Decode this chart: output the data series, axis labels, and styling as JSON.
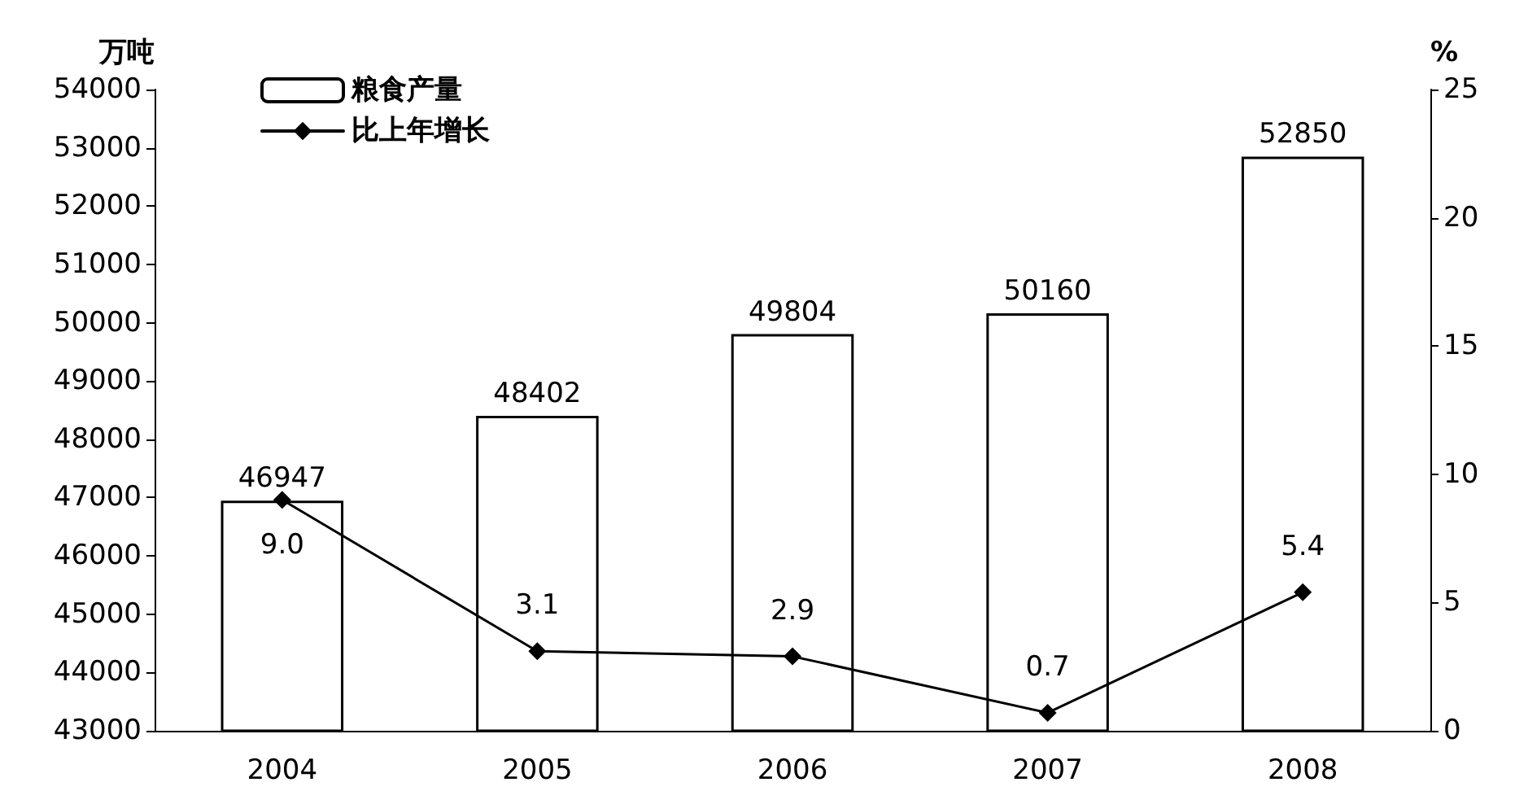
{
  "chart_data": {
    "type": "bar",
    "ylabel": "万吨",
    "y2label": "%",
    "categories": [
      "2004",
      "2005",
      "2006",
      "2007",
      "2008"
    ],
    "series": [
      {
        "name": "粮食产量",
        "color": "#ffffff",
        "values": [
          46947,
          48402,
          49804,
          50160,
          52850
        ],
        "value_labels": [
          "46947",
          "48402",
          "49804",
          "50160",
          "52850"
        ]
      },
      {
        "name": "比上年增长",
        "type": "line",
        "axis": "y2",
        "color": "#000000",
        "marker": "diamond",
        "values": [
          9.0,
          3.1,
          2.9,
          0.7,
          5.4
        ],
        "value_labels": [
          "9.0",
          "3.1",
          "2.9",
          "0.7",
          "5.4"
        ]
      }
    ],
    "ylim": [
      43000,
      54000
    ],
    "yticks": [
      43000,
      44000,
      45000,
      46000,
      47000,
      48000,
      49000,
      50000,
      51000,
      52000,
      53000,
      54000
    ],
    "y2lim": [
      0,
      25
    ],
    "y2ticks": [
      0,
      5,
      10,
      15,
      20,
      25
    ],
    "legend": "top left",
    "grid": false
  }
}
